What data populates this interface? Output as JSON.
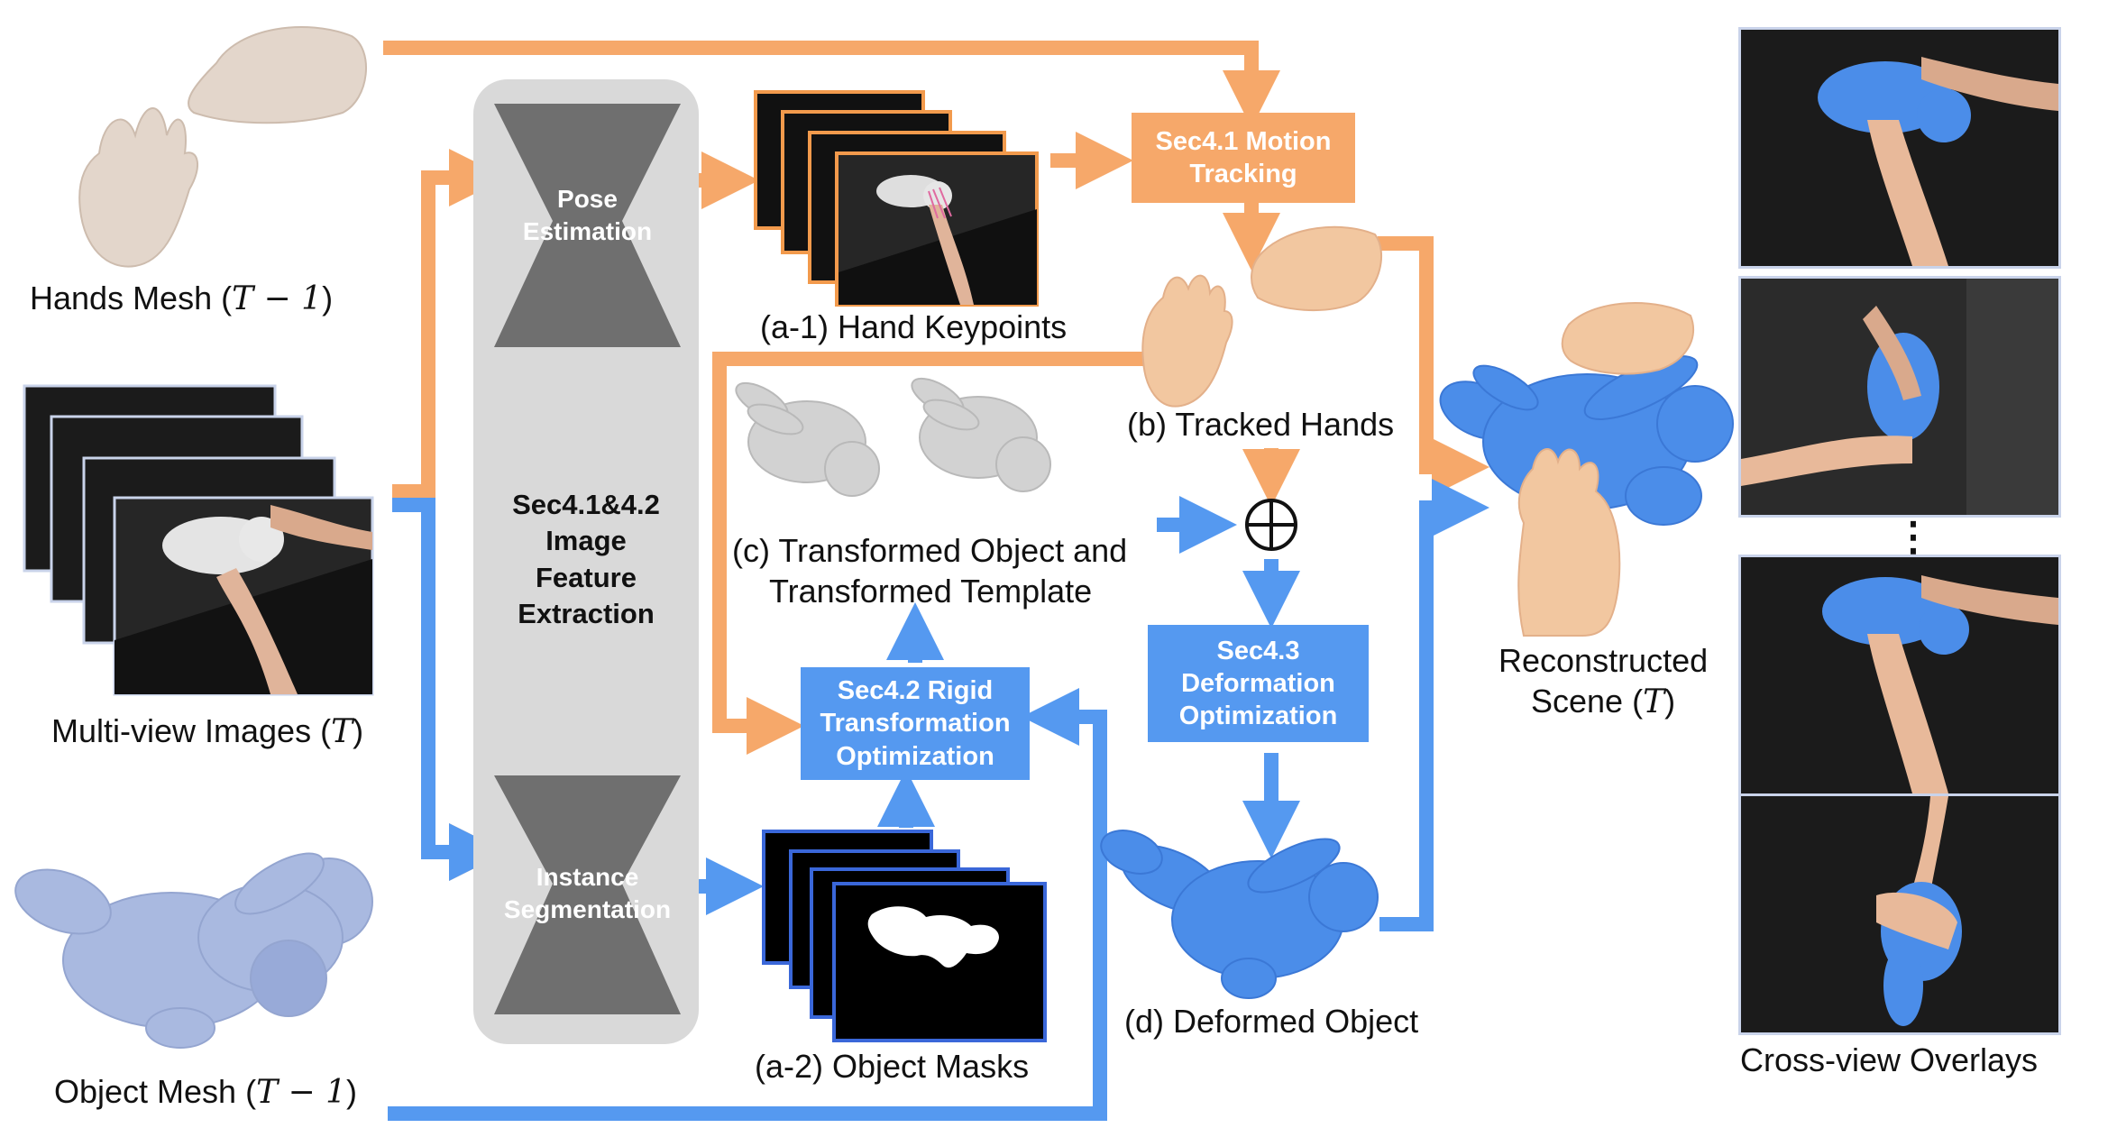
{
  "inputs": {
    "hands_mesh": "Hands Mesh (",
    "hands_mesh_var": "T − 1",
    "multiview": "Multi-view Images (",
    "multiview_var": "T",
    "object_mesh": "Object Mesh (",
    "object_mesh_var": "T − 1",
    "close_paren": ")"
  },
  "feature_extraction": {
    "pose_line1": "Pose",
    "pose_line2": "Estimation",
    "title_line1": "Sec4.1&4.2",
    "title_line2": "Image",
    "title_line3": "Feature",
    "title_line4": "Extraction",
    "seg_line1": "Instance",
    "seg_line2": "Segmentation"
  },
  "stages": {
    "motion_tracking_1": "Sec4.1 Motion",
    "motion_tracking_2": "Tracking",
    "rigid_1": "Sec4.2 Rigid",
    "rigid_2": "Transformation",
    "rigid_3": "Optimization",
    "deform_1": "Sec4.3",
    "deform_2": "Deformation",
    "deform_3": "Optimization",
    "oplus": "⊕"
  },
  "captions": {
    "hand_keypoints": "(a-1) Hand Keypoints",
    "object_masks": "(a-2) Object Masks",
    "tracked_hands": "(b) Tracked Hands",
    "transformed_1": "(c) Transformed Object and",
    "transformed_2": "Transformed Template",
    "deformed_object": "(d) Deformed Object",
    "reconstructed_1": "Reconstructed",
    "reconstructed_2": "Scene (",
    "reconstructed_var": "T",
    "cross_view": "Cross-view Overlays",
    "ellipsis": "⋮"
  },
  "colors": {
    "orange_arrow": "#f6a86a",
    "blue_arrow": "#5599f0",
    "panel_gray": "#d9d9d9",
    "hourglass_gray": "#6f6f6f"
  }
}
